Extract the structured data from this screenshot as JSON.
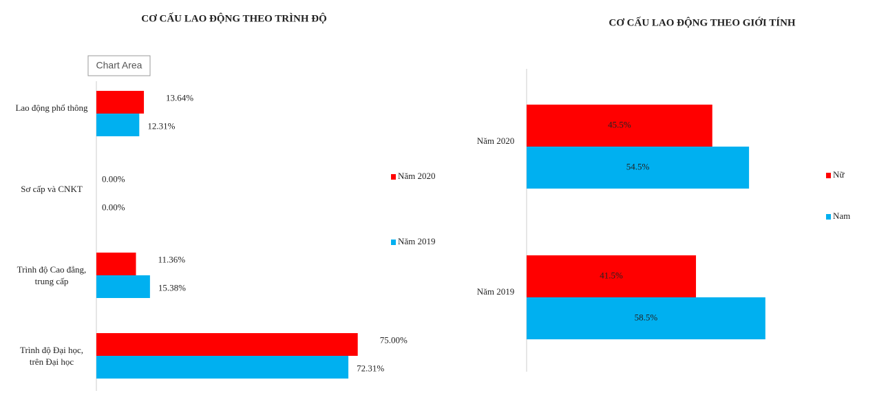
{
  "chart_data": [
    {
      "type": "bar",
      "orientation": "horizontal",
      "title": "CƠ CẤU LAO ĐỘNG THEO TRÌNH ĐỘ",
      "tooltip": "Chart Area",
      "categories": [
        "Lao động phổ thông",
        "Sơ cấp và CNKT",
        "Trình độ Cao đẳng, trung cấp",
        "Trình độ Đại học, trên Đại học"
      ],
      "series": [
        {
          "name": "Năm 2020",
          "color": "#ff0000",
          "values": [
            13.64,
            0,
            11.36,
            75
          ],
          "value_labels": [
            "13.64%",
            "0.00%",
            "11.36%",
            "75.00%"
          ]
        },
        {
          "name": "Năm 2019",
          "color": "#00b0f0",
          "values": [
            12.31,
            0,
            15.38,
            72.31
          ],
          "value_labels": [
            "12.31%",
            "0.00%",
            "15.38%",
            "72.31%"
          ]
        }
      ],
      "xlim": [
        0,
        80
      ],
      "legend": "right"
    },
    {
      "type": "bar",
      "orientation": "horizontal",
      "title": "CƠ CẤU LAO ĐỘNG THEO GIỚI TÍNH",
      "categories": [
        "Năm 2020",
        "Năm 2019"
      ],
      "series": [
        {
          "name": "Nữ",
          "color": "#ff0000",
          "values": [
            45.5,
            41.5
          ],
          "value_labels": [
            "45.5%",
            "41.5%"
          ]
        },
        {
          "name": "Nam",
          "color": "#00b0f0",
          "values": [
            54.5,
            58.5
          ],
          "value_labels": [
            "54.5%",
            "58.5%"
          ]
        }
      ],
      "xlim": [
        0,
        70
      ],
      "legend": "right"
    }
  ]
}
